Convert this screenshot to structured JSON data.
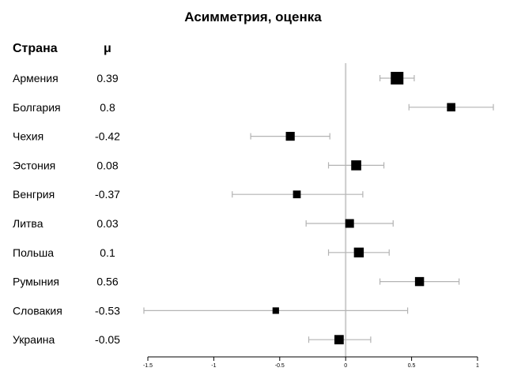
{
  "chart_data": {
    "type": "forest",
    "title": "Асимметрия, оценка",
    "column_headers": {
      "country": "Страна",
      "estimate": "μ"
    },
    "rows": [
      {
        "country": "Армения",
        "mu_label": "0.39",
        "estimate": 0.39,
        "ci_low": 0.26,
        "ci_high": 0.52,
        "weight": 1.0
      },
      {
        "country": "Болгария",
        "mu_label": "0.8",
        "estimate": 0.8,
        "ci_low": 0.48,
        "ci_high": 1.12,
        "weight": 0.55
      },
      {
        "country": "Чехия",
        "mu_label": "-0.42",
        "estimate": -0.42,
        "ci_low": -0.72,
        "ci_high": -0.12,
        "weight": 0.6
      },
      {
        "country": "Эстония",
        "mu_label": "0.08",
        "estimate": 0.08,
        "ci_low": -0.13,
        "ci_high": 0.29,
        "weight": 0.72
      },
      {
        "country": "Венгрия",
        "mu_label": "-0.37",
        "estimate": -0.37,
        "ci_low": -0.86,
        "ci_high": 0.13,
        "weight": 0.48
      },
      {
        "country": "Литва",
        "mu_label": "0.03",
        "estimate": 0.03,
        "ci_low": -0.3,
        "ci_high": 0.36,
        "weight": 0.58
      },
      {
        "country": "Польша",
        "mu_label": "0.1",
        "estimate": 0.1,
        "ci_low": -0.13,
        "ci_high": 0.33,
        "weight": 0.7
      },
      {
        "country": "Румыния",
        "mu_label": "0.56",
        "estimate": 0.56,
        "ci_low": 0.26,
        "ci_high": 0.86,
        "weight": 0.62
      },
      {
        "country": "Словакия",
        "mu_label": "-0.53",
        "estimate": -0.53,
        "ci_low": -1.53,
        "ci_high": 0.47,
        "weight": 0.35
      },
      {
        "country": "Украина",
        "mu_label": "-0.05",
        "estimate": -0.05,
        "ci_low": -0.28,
        "ci_high": 0.19,
        "weight": 0.65
      }
    ],
    "x_ticks": [
      {
        "value": -1.5,
        "label": "-1.5"
      },
      {
        "value": -1,
        "label": "-1"
      },
      {
        "value": -0.5,
        "label": "-0.5"
      },
      {
        "value": 0,
        "label": "0"
      },
      {
        "value": 0.5,
        "label": "0.5"
      },
      {
        "value": 1,
        "label": "1"
      }
    ],
    "xlim": [
      -1.5,
      1
    ],
    "reference_line": 0,
    "colors": {
      "marker": "#000000",
      "ci_line": "#b3b3b3",
      "reference_line": "#cccccc",
      "axis": "#000000"
    }
  }
}
